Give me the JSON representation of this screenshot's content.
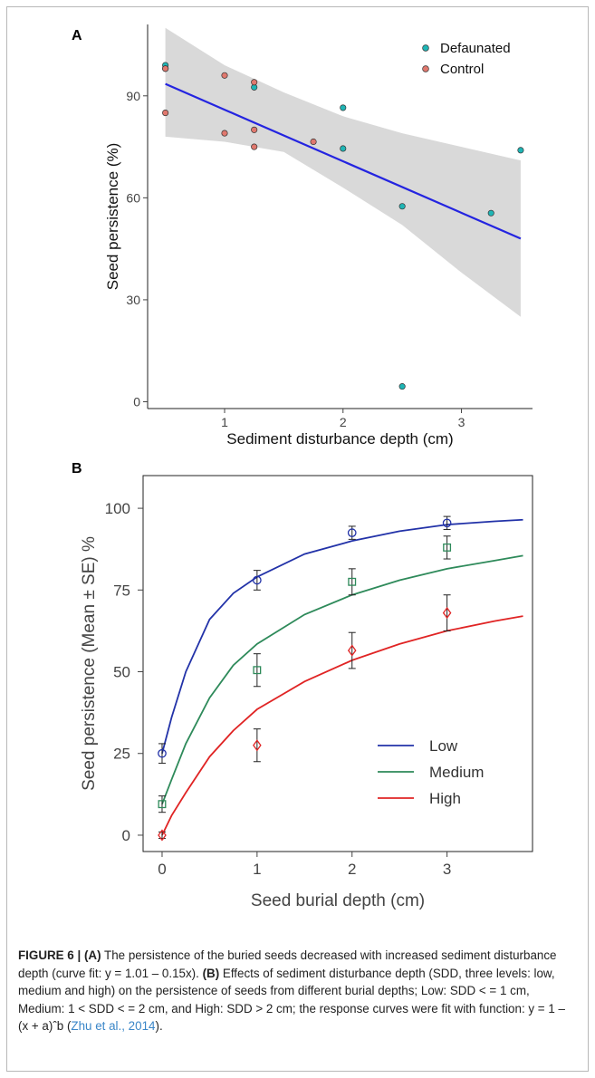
{
  "chart_data": [
    {
      "panel": "A",
      "type": "scatter",
      "xlabel": "Sediment disturbance depth (cm)",
      "ylabel": "Seed persistence (%)",
      "xlim": [
        0.35,
        3.6
      ],
      "ylim": [
        -2,
        111
      ],
      "xticks": [
        1,
        2,
        3
      ],
      "yticks": [
        0,
        30,
        60,
        90
      ],
      "grid": false,
      "legend_position": "top-right",
      "series": [
        {
          "name": "Defaunated",
          "color": "#1fb5b5",
          "points": [
            [
              0.5,
              99
            ],
            [
              0.5,
              98
            ],
            [
              1.25,
              92.5
            ],
            [
              2.0,
              86.5
            ],
            [
              2.0,
              74.5
            ],
            [
              2.5,
              57.5
            ],
            [
              3.25,
              55.5
            ],
            [
              3.5,
              74
            ],
            [
              2.5,
              4.5
            ]
          ]
        },
        {
          "name": "Control",
          "color": "#e0786e",
          "points": [
            [
              0.5,
              85
            ],
            [
              1.0,
              96
            ],
            [
              1.0,
              79
            ],
            [
              1.25,
              94
            ],
            [
              1.25,
              80
            ],
            [
              1.25,
              75
            ],
            [
              1.75,
              76.5
            ],
            [
              0.5,
              98
            ]
          ]
        }
      ],
      "fit": {
        "color": "#2424e0",
        "x": [
          0.5,
          3.5
        ],
        "y": [
          93.5,
          48
        ],
        "band_upper": [
          [
            0.5,
            110
          ],
          [
            1.0,
            99
          ],
          [
            1.5,
            91
          ],
          [
            2.0,
            84
          ],
          [
            2.5,
            79
          ],
          [
            3.0,
            75
          ],
          [
            3.5,
            71
          ]
        ],
        "band_lower": [
          [
            0.5,
            78
          ],
          [
            1.0,
            76.5
          ],
          [
            1.5,
            73.5
          ],
          [
            2.0,
            63
          ],
          [
            2.5,
            52
          ],
          [
            3.0,
            38
          ],
          [
            3.5,
            25
          ]
        ]
      }
    },
    {
      "panel": "B",
      "type": "line",
      "xlabel": "Seed burial depth (cm)",
      "ylabel": "Seed persistence (Mean ± SE) %",
      "xlim": [
        -0.2,
        3.9
      ],
      "ylim": [
        -5,
        110
      ],
      "xticks": [
        0,
        1,
        2,
        3
      ],
      "yticks": [
        0,
        25,
        50,
        75,
        100
      ],
      "grid": false,
      "legend_position": "bottom-right",
      "series": [
        {
          "name": "Low",
          "color": "#2232a8",
          "marker": "circle",
          "x": [
            0,
            1,
            2,
            3
          ],
          "mean": [
            25,
            78,
            92.5,
            95.5
          ],
          "se": [
            3,
            3,
            2,
            2
          ],
          "curve": [
            [
              0,
              25
            ],
            [
              0.1,
              36
            ],
            [
              0.25,
              50
            ],
            [
              0.5,
              66
            ],
            [
              0.75,
              74
            ],
            [
              1.0,
              79
            ],
            [
              1.5,
              86
            ],
            [
              2.0,
              90
            ],
            [
              2.5,
              93
            ],
            [
              3.0,
              95
            ],
            [
              3.5,
              96
            ],
            [
              3.8,
              96.5
            ]
          ]
        },
        {
          "name": "Medium",
          "color": "#2e8a5a",
          "marker": "square",
          "x": [
            0,
            1,
            2,
            3
          ],
          "mean": [
            9.5,
            50.5,
            77.5,
            88
          ],
          "se": [
            2.5,
            5,
            4,
            3.5
          ],
          "curve": [
            [
              0,
              9.5
            ],
            [
              0.1,
              17
            ],
            [
              0.25,
              28
            ],
            [
              0.5,
              42
            ],
            [
              0.75,
              52
            ],
            [
              1.0,
              58.5
            ],
            [
              1.5,
              67.5
            ],
            [
              2.0,
              73.5
            ],
            [
              2.5,
              78
            ],
            [
              3.0,
              81.5
            ],
            [
              3.5,
              84
            ],
            [
              3.8,
              85.5
            ]
          ]
        },
        {
          "name": "High",
          "color": "#e02424",
          "marker": "diamond",
          "x": [
            0,
            1,
            2,
            3
          ],
          "mean": [
            0,
            27.5,
            56.5,
            68
          ],
          "se": [
            1,
            5,
            5.5,
            5.5
          ],
          "curve": [
            [
              0,
              0
            ],
            [
              0.1,
              6
            ],
            [
              0.25,
              13
            ],
            [
              0.5,
              24
            ],
            [
              0.75,
              32
            ],
            [
              1.0,
              38.5
            ],
            [
              1.5,
              47
            ],
            [
              2.0,
              53.5
            ],
            [
              2.5,
              58.5
            ],
            [
              3.0,
              62.5
            ],
            [
              3.5,
              65.5
            ],
            [
              3.8,
              67
            ]
          ]
        }
      ]
    }
  ],
  "caption": {
    "figure_label": "FIGURE 6 | ",
    "part_a": "(A)",
    "text_a": " The persistence of the buried seeds decreased with increased sediment disturbance depth (curve fit: y = 1.01 – 0.15x). ",
    "part_b": "(B)",
    "text_b": " Effects of sediment disturbance depth (SDD, three levels: low, medium and high) on the persistence of seeds from different burial depths; Low: SDD < = 1 cm, Medium: 1 < SDD < = 2 cm, and High: SDD > 2 cm; the response curves were fit with function: y = 1 – (x + a)ˆb (",
    "citation": "Zhu et al., 2014",
    "text_end": ")."
  }
}
